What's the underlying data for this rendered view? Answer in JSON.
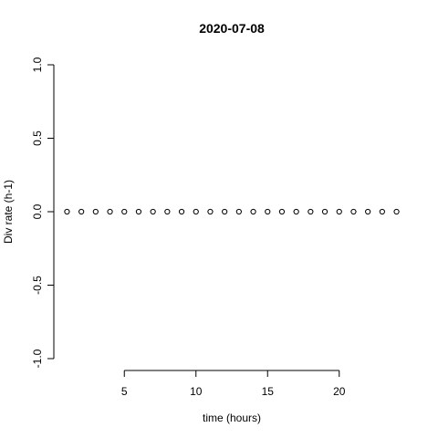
{
  "chart_data": {
    "type": "scatter",
    "title": "2020-07-08",
    "xlabel": "time (hours)",
    "ylabel": "Div rate (h-1)",
    "xlim": [
      0.08,
      24.92
    ],
    "ylim": [
      -1.0,
      1.0
    ],
    "xticks": [
      5,
      10,
      15,
      20
    ],
    "xtick_labels": [
      "5",
      "10",
      "15",
      "20"
    ],
    "yticks": [
      -1.0,
      -0.5,
      0.0,
      0.5,
      1.0
    ],
    "ytick_labels": [
      "-1.0",
      "-0.5",
      "0.0",
      "0.5",
      "1.0"
    ],
    "grid": false,
    "marker": "open-circle",
    "series": [
      {
        "x": [
          1,
          2,
          3,
          4,
          5,
          6,
          7,
          8,
          9,
          10,
          11,
          12,
          13,
          14,
          15,
          16,
          17,
          18,
          19,
          20,
          21,
          22,
          23,
          24
        ],
        "y": [
          0,
          0,
          0,
          0,
          0,
          0,
          0,
          0,
          0,
          0,
          0,
          0,
          0,
          0,
          0,
          0,
          0,
          0,
          0,
          0,
          0,
          0,
          0,
          0
        ]
      }
    ]
  }
}
